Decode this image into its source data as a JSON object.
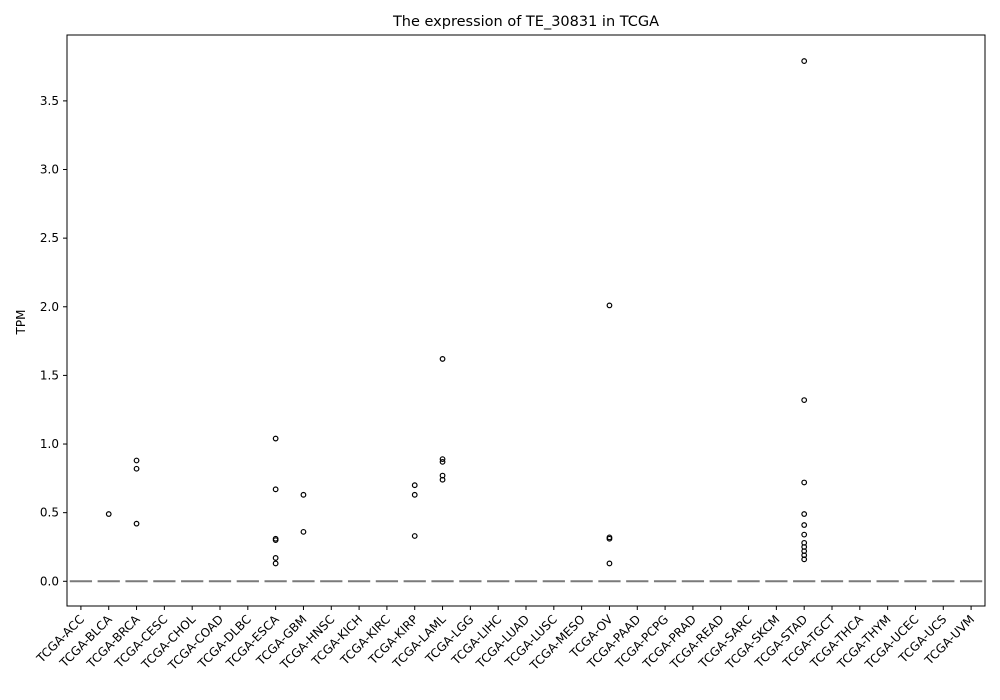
{
  "chart_data": {
    "type": "box",
    "title": "The expression of TE_30831 in TCGA",
    "xlabel": "",
    "ylabel": "TPM",
    "ylim": [
      -0.18,
      3.98
    ],
    "yticks": [
      "0.0",
      "0.5",
      "1.0",
      "1.5",
      "2.0",
      "2.5",
      "3.0",
      "3.5"
    ],
    "grid": false,
    "categories": [
      "TCGA-ACC",
      "TCGA-BLCA",
      "TCGA-BRCA",
      "TCGA-CESC",
      "TCGA-CHOL",
      "TCGA-COAD",
      "TCGA-DLBC",
      "TCGA-ESCA",
      "TCGA-GBM",
      "TCGA-HNSC",
      "TCGA-KICH",
      "TCGA-KIRC",
      "TCGA-KIRP",
      "TCGA-LAML",
      "TCGA-LGG",
      "TCGA-LIHC",
      "TCGA-LUAD",
      "TCGA-LUSC",
      "TCGA-MESO",
      "TCGA-OV",
      "TCGA-PAAD",
      "TCGA-PCPG",
      "TCGA-PRAD",
      "TCGA-READ",
      "TCGA-SARC",
      "TCGA-SKCM",
      "TCGA-STAD",
      "TCGA-TGCT",
      "TCGA-THCA",
      "TCGA-THYM",
      "TCGA-UCEC",
      "TCGA-UCS",
      "TCGA-UVM"
    ],
    "medians": [
      0,
      0,
      0,
      0,
      0,
      0,
      0,
      0,
      0,
      0,
      0,
      0,
      0,
      0,
      0,
      0,
      0,
      0,
      0,
      0,
      0,
      0,
      0,
      0,
      0,
      0,
      0,
      0,
      0,
      0,
      0,
      0,
      0
    ],
    "outliers": {
      "TCGA-BLCA": [
        0.49
      ],
      "TCGA-BRCA": [
        0.88,
        0.82,
        0.42
      ],
      "TCGA-ESCA": [
        1.04,
        0.67,
        0.31,
        0.3,
        0.17,
        0.13
      ],
      "TCGA-GBM": [
        0.63,
        0.36
      ],
      "TCGA-KIRP": [
        0.7,
        0.63,
        0.33
      ],
      "TCGA-LAML": [
        1.62,
        0.89,
        0.87,
        0.77,
        0.74
      ],
      "TCGA-OV": [
        2.01,
        0.32,
        0.31,
        0.13
      ],
      "TCGA-STAD": [
        3.79,
        1.32,
        0.72,
        0.49,
        0.41,
        0.34,
        0.28,
        0.25,
        0.22,
        0.19,
        0.16
      ]
    },
    "colors": {
      "median": "#7a7a7a",
      "marker": "#000000"
    }
  }
}
